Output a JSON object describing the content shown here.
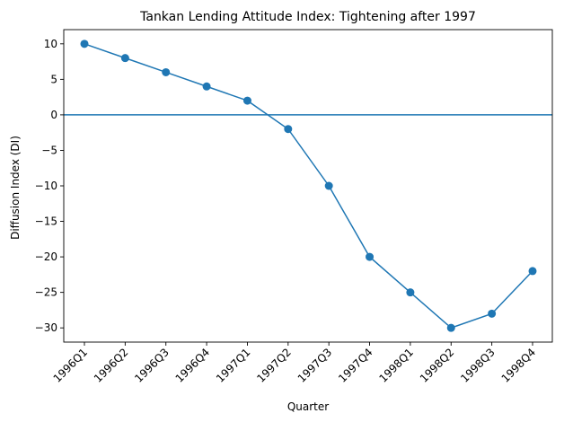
{
  "chart_data": {
    "type": "line",
    "title": "Tankan Lending Attitude Index: Tightening after 1997",
    "xlabel": "Quarter",
    "ylabel": "Diffusion Index (DI)",
    "categories": [
      "1996Q1",
      "1996Q2",
      "1996Q3",
      "1996Q4",
      "1997Q1",
      "1997Q2",
      "1997Q3",
      "1997Q4",
      "1998Q1",
      "1998Q2",
      "1998Q3",
      "1998Q4"
    ],
    "series": [
      {
        "values": [
          10,
          8,
          6,
          4,
          2,
          -2,
          -10,
          -20,
          -25,
          -30,
          -28,
          -22
        ]
      }
    ],
    "reference_line": {
      "y": 0
    },
    "ylim": [
      -32,
      12
    ],
    "yticks": [
      10,
      5,
      0,
      -5,
      -10,
      -15,
      -20,
      -25,
      -30
    ],
    "xtick_rotation": 45,
    "grid": false,
    "colors": {
      "series": "#1f77b4",
      "reference": "#1f77b4",
      "axis": "#000000"
    }
  }
}
